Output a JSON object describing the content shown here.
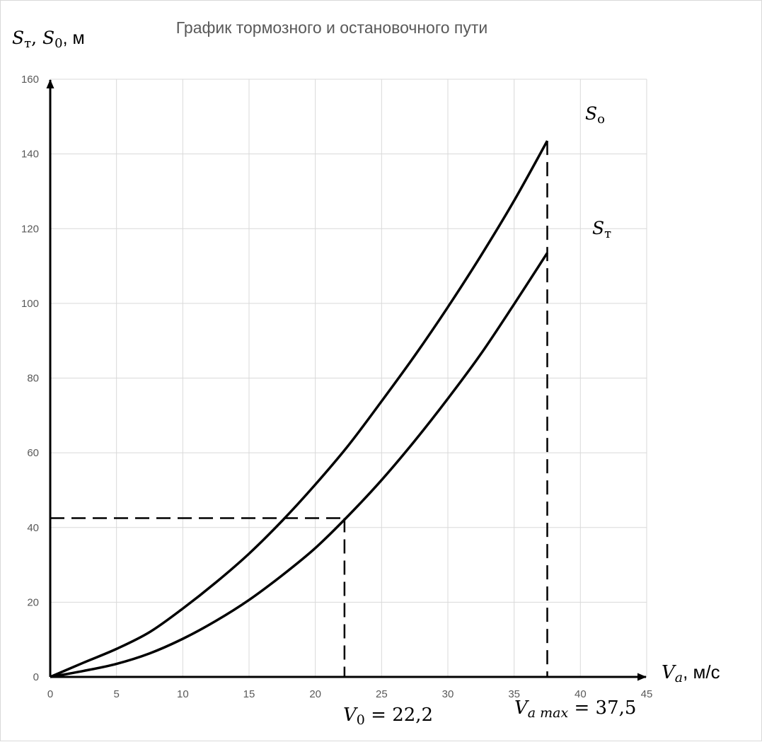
{
  "chart_data": {
    "type": "line",
    "title": "График тормозного и остановочного пути",
    "ylabel": {
      "var": "S",
      "sub_t": "т",
      "sep": ", ",
      "var2": "S",
      "sub_0": "0",
      "unit": ", м"
    },
    "xlabel": {
      "var": "V",
      "sub": "a",
      "unit": ", м/с"
    },
    "xlim": [
      0,
      45
    ],
    "ylim": [
      0,
      160
    ],
    "xticks": [
      0,
      5,
      10,
      15,
      20,
      25,
      30,
      35,
      40,
      45
    ],
    "yticks": [
      0,
      20,
      40,
      60,
      80,
      100,
      120,
      140,
      160
    ],
    "grid": true,
    "series": [
      {
        "name_var": "S",
        "name_sub": "о",
        "x": [
          0,
          2.5,
          5,
          7.5,
          10,
          12.5,
          15,
          17.5,
          20,
          22.5,
          25,
          27.5,
          30,
          32.5,
          35,
          37.5
        ],
        "y": [
          0,
          3.8,
          7.5,
          12.0,
          18.3,
          25.3,
          33.0,
          41.8,
          51.5,
          62.0,
          73.8,
          86.0,
          99.0,
          112.8,
          127.5,
          143.5
        ]
      },
      {
        "name_var": "S",
        "name_sub": "т",
        "x": [
          0,
          2.5,
          5,
          7.5,
          10,
          12.5,
          15,
          17.5,
          20,
          22.5,
          25,
          27.5,
          30,
          32.5,
          35,
          37.5
        ],
        "y": [
          0,
          1.6,
          3.5,
          6.3,
          10.2,
          15.0,
          20.6,
          27.2,
          34.5,
          43.2,
          52.7,
          63.2,
          74.5,
          86.5,
          99.8,
          113.5
        ]
      }
    ],
    "annotations": {
      "v0": {
        "x": 22.2,
        "y": 42.5,
        "var": "V",
        "sub": "0",
        "text": " = 22,2"
      },
      "vmax": {
        "x": 37.5,
        "var": "V",
        "sub": "a max",
        "text": " = 37,5"
      }
    }
  }
}
